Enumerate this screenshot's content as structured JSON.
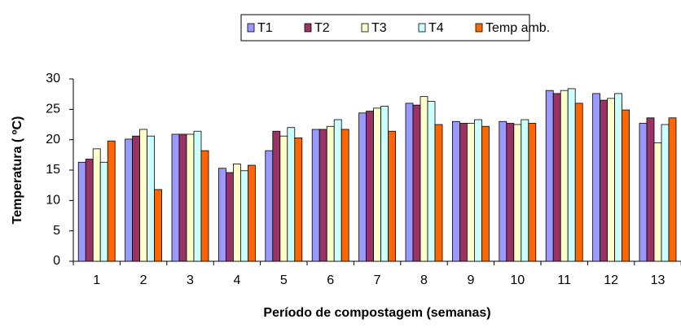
{
  "chart_data": {
    "type": "bar",
    "x_label": "Período de compostagem (semanas)",
    "y_label": "Temperatura ( ºC)",
    "categories": [
      "1",
      "2",
      "3",
      "4",
      "5",
      "6",
      "7",
      "8",
      "9",
      "10",
      "11",
      "12",
      "13"
    ],
    "series": [
      {
        "name": "T1",
        "color": "#9999ff",
        "values": [
          16.3,
          20.1,
          20.9,
          15.3,
          18.2,
          21.7,
          24.4,
          26.0,
          23.0,
          23.0,
          28.1,
          27.6,
          22.7
        ]
      },
      {
        "name": "T2",
        "color": "#993366",
        "values": [
          16.8,
          20.6,
          20.9,
          14.6,
          21.4,
          21.7,
          24.7,
          25.7,
          22.7,
          22.7,
          27.6,
          26.5,
          23.6
        ]
      },
      {
        "name": "T3",
        "color": "#ffffcc",
        "values": [
          18.5,
          21.7,
          20.9,
          16.0,
          20.6,
          22.2,
          25.2,
          27.1,
          22.7,
          22.5,
          28.1,
          26.8,
          19.5
        ]
      },
      {
        "name": "T4",
        "color": "#ccffff",
        "values": [
          16.3,
          20.6,
          21.4,
          14.9,
          22.0,
          23.3,
          25.5,
          26.3,
          23.3,
          23.3,
          28.4,
          27.6,
          22.5
        ]
      },
      {
        "name": "Temp amb.",
        "color": "#ff6600",
        "values": [
          19.8,
          11.8,
          18.2,
          15.8,
          20.3,
          21.7,
          21.4,
          22.5,
          22.2,
          22.7,
          26.0,
          24.9,
          23.6
        ]
      }
    ],
    "ylim": [
      0,
      30
    ],
    "yticks": [
      0,
      5,
      10,
      15,
      20,
      25,
      30
    ],
    "legend": "top"
  }
}
